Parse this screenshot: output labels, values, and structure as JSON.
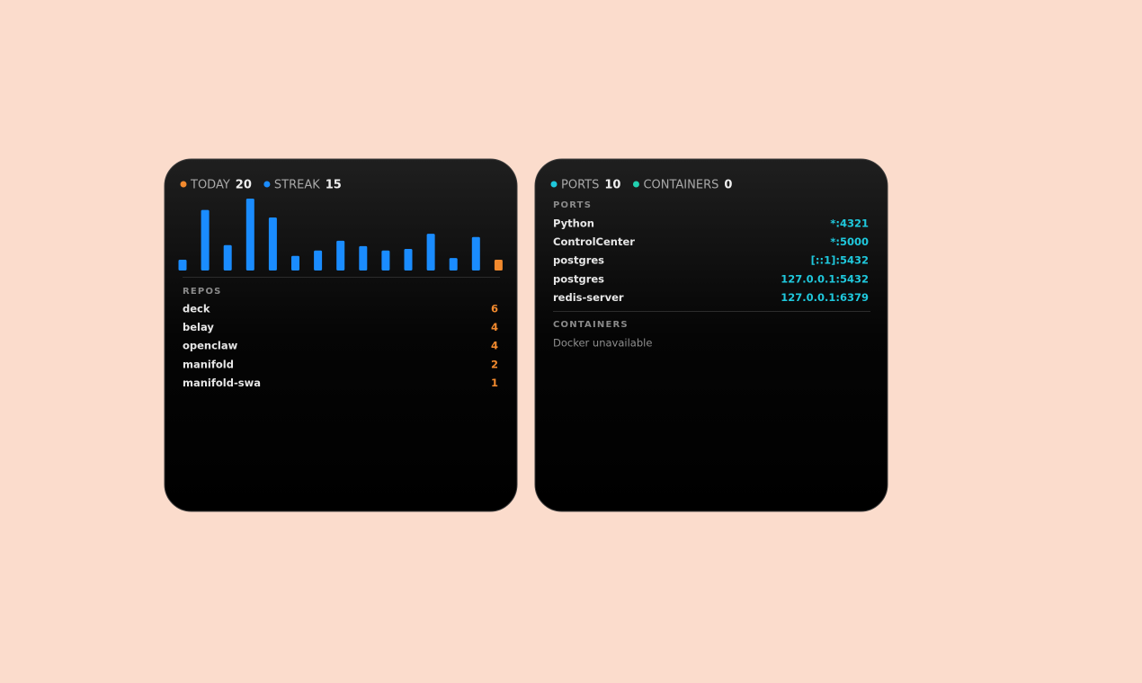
{
  "activity": {
    "stats": [
      {
        "label": "TODAY",
        "value": 20,
        "color": "#f28a2e"
      },
      {
        "label": "STREAK",
        "value": 15,
        "color": "#1a8cff"
      }
    ],
    "repos_title": "REPOS",
    "repos": [
      {
        "name": "deck",
        "count": 6
      },
      {
        "name": "belay",
        "count": 4
      },
      {
        "name": "openclaw",
        "count": 4
      },
      {
        "name": "manifold",
        "count": 2
      },
      {
        "name": "manifold-swa",
        "count": 1
      }
    ],
    "count_color": "#f28a2e"
  },
  "chart_data": {
    "type": "bar",
    "values": [
      20,
      112,
      47,
      133,
      98,
      27,
      37,
      55,
      45,
      37,
      40,
      68,
      23,
      62,
      20
    ],
    "colors": [
      "#1a8cff",
      "#1a8cff",
      "#1a8cff",
      "#1a8cff",
      "#1a8cff",
      "#1a8cff",
      "#1a8cff",
      "#1a8cff",
      "#1a8cff",
      "#1a8cff",
      "#1a8cff",
      "#1a8cff",
      "#1a8cff",
      "#1a8cff",
      "#f28a2e"
    ]
  },
  "system": {
    "stats": [
      {
        "label": "PORTS",
        "value": 10,
        "color": "#1fc8dc"
      },
      {
        "label": "CONTAINERS",
        "value": 0,
        "color": "#22d0b0"
      }
    ],
    "ports_title": "PORTS",
    "ports": [
      {
        "name": "Python",
        "address": "*:4321"
      },
      {
        "name": "ControlCenter",
        "address": "*:5000"
      },
      {
        "name": "postgres",
        "address": "[::1]:5432"
      },
      {
        "name": "postgres",
        "address": "127.0.0.1:5432"
      },
      {
        "name": "redis-server",
        "address": "127.0.0.1:6379"
      }
    ],
    "address_color": "#1fc8dc",
    "containers_title": "CONTAINERS",
    "containers_message": "Docker unavailable"
  }
}
